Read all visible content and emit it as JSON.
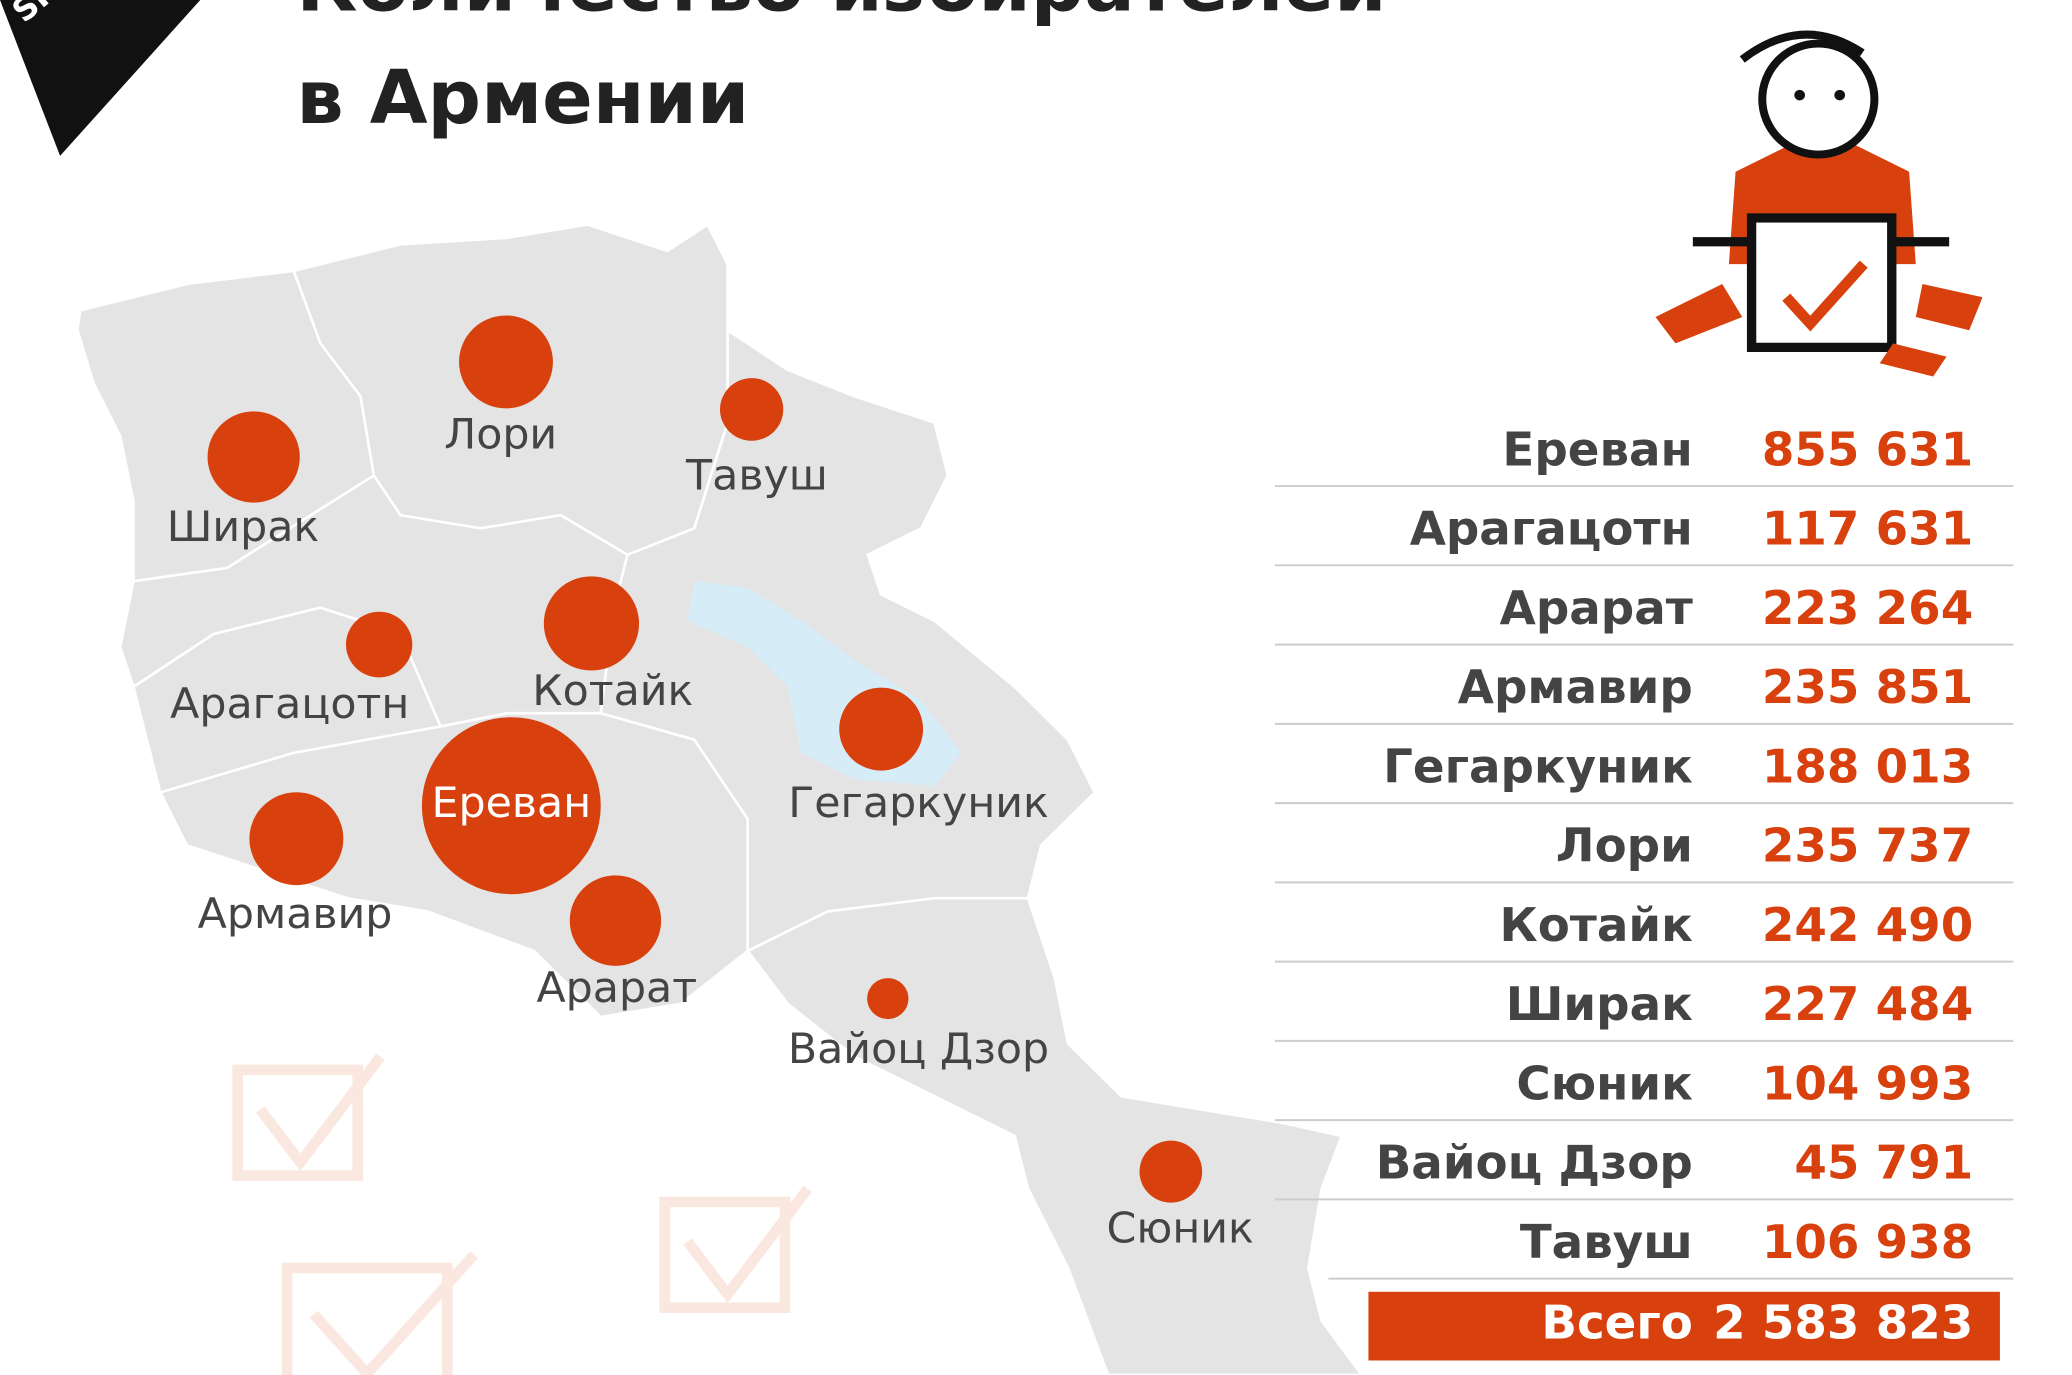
{
  "chart_data": {
    "type": "bubble-map",
    "logo": "SPUTNIK",
    "title": [
      "Количество избирателей",
      "в Армении"
    ],
    "categories": [
      "Ереван",
      "Арагацотн",
      "Арарат",
      "Армавир",
      "Гегаркуник",
      "Лори",
      "Котайк",
      "Ширак",
      "Сюник",
      "Вайоц Дзор",
      "Тавуш"
    ],
    "values": [
      855631,
      117631,
      223264,
      235851,
      188013,
      235737,
      242490,
      227484,
      104993,
      45791,
      106938
    ],
    "value_labels": [
      "855 631",
      "117 631",
      "223 264",
      "235 851",
      "188 013",
      "235 737",
      "242 490",
      "227 484",
      "104 993",
      "45 791",
      "106 938"
    ],
    "color": "#d8410d",
    "total_label": "Всего",
    "total": 2583823,
    "total_value_label": "2 583 823"
  }
}
